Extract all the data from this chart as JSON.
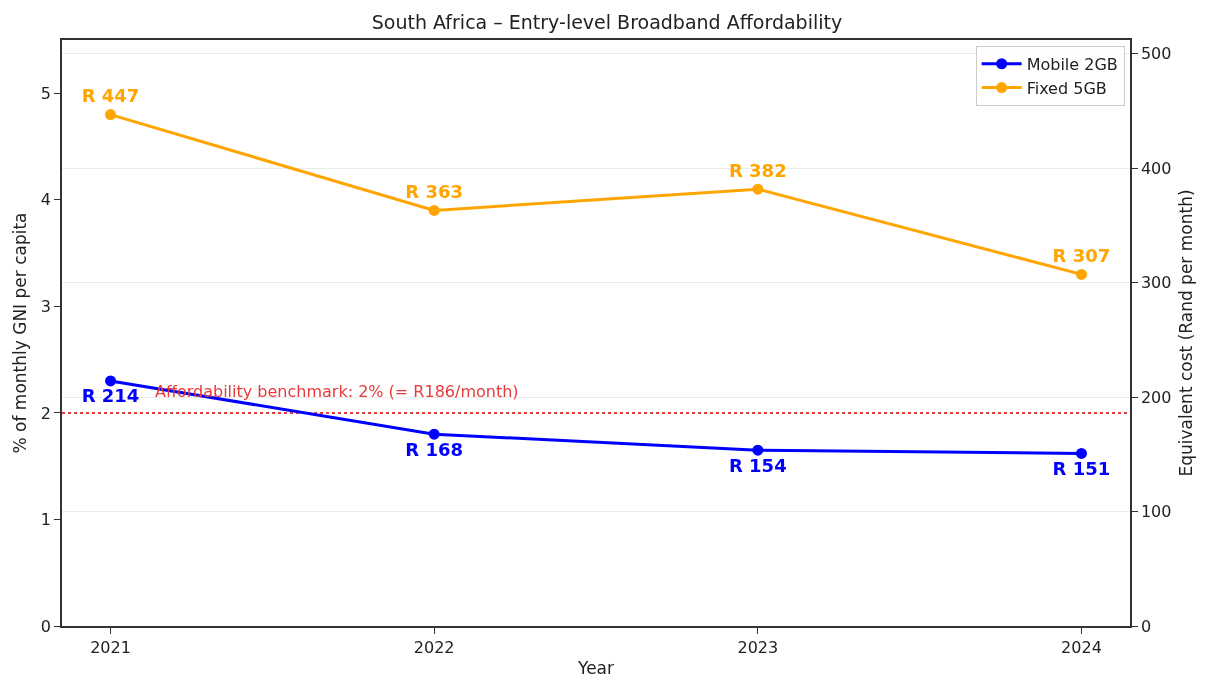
{
  "chart_data": {
    "type": "line",
    "title": "South Africa – Entry-level Broadband Affordability",
    "xlabel": "Year",
    "ylabel": "% of monthly GNI per capita",
    "y2label": "Equivalent cost (Rand per month)",
    "x": [
      2021,
      2022,
      2023,
      2024
    ],
    "series": [
      {
        "name": "Mobile 2GB",
        "color": "#0000ff",
        "values": [
          2.3,
          1.8,
          1.65,
          1.62
        ],
        "value_labels": [
          "R 214",
          "R 168",
          "R 154",
          "R 151"
        ]
      },
      {
        "name": "Fixed 5GB",
        "color": "#ffa500",
        "values": [
          4.8,
          3.9,
          4.1,
          3.3
        ],
        "value_labels": [
          "R 447",
          "R 363",
          "R 382",
          "R 307"
        ]
      }
    ],
    "xlim": [
      2020.85,
      2024.15
    ],
    "xticks": [
      2021,
      2022,
      2023,
      2024
    ],
    "ylim": [
      0,
      5.5
    ],
    "yticks": [
      0,
      1,
      2,
      3,
      4,
      5
    ],
    "y2lim": [
      0,
      512
    ],
    "y2ticks": [
      0,
      100,
      200,
      300,
      400,
      500
    ],
    "ref_lines": [
      {
        "axis": "y",
        "value": 2,
        "label": "Affordability benchmark: 2% (= R186/month)",
        "color": "#e83a3a",
        "line_style": "dotted"
      }
    ],
    "grid": "y2",
    "legend": "top right",
    "marker": "circle",
    "line_style": "solid"
  }
}
